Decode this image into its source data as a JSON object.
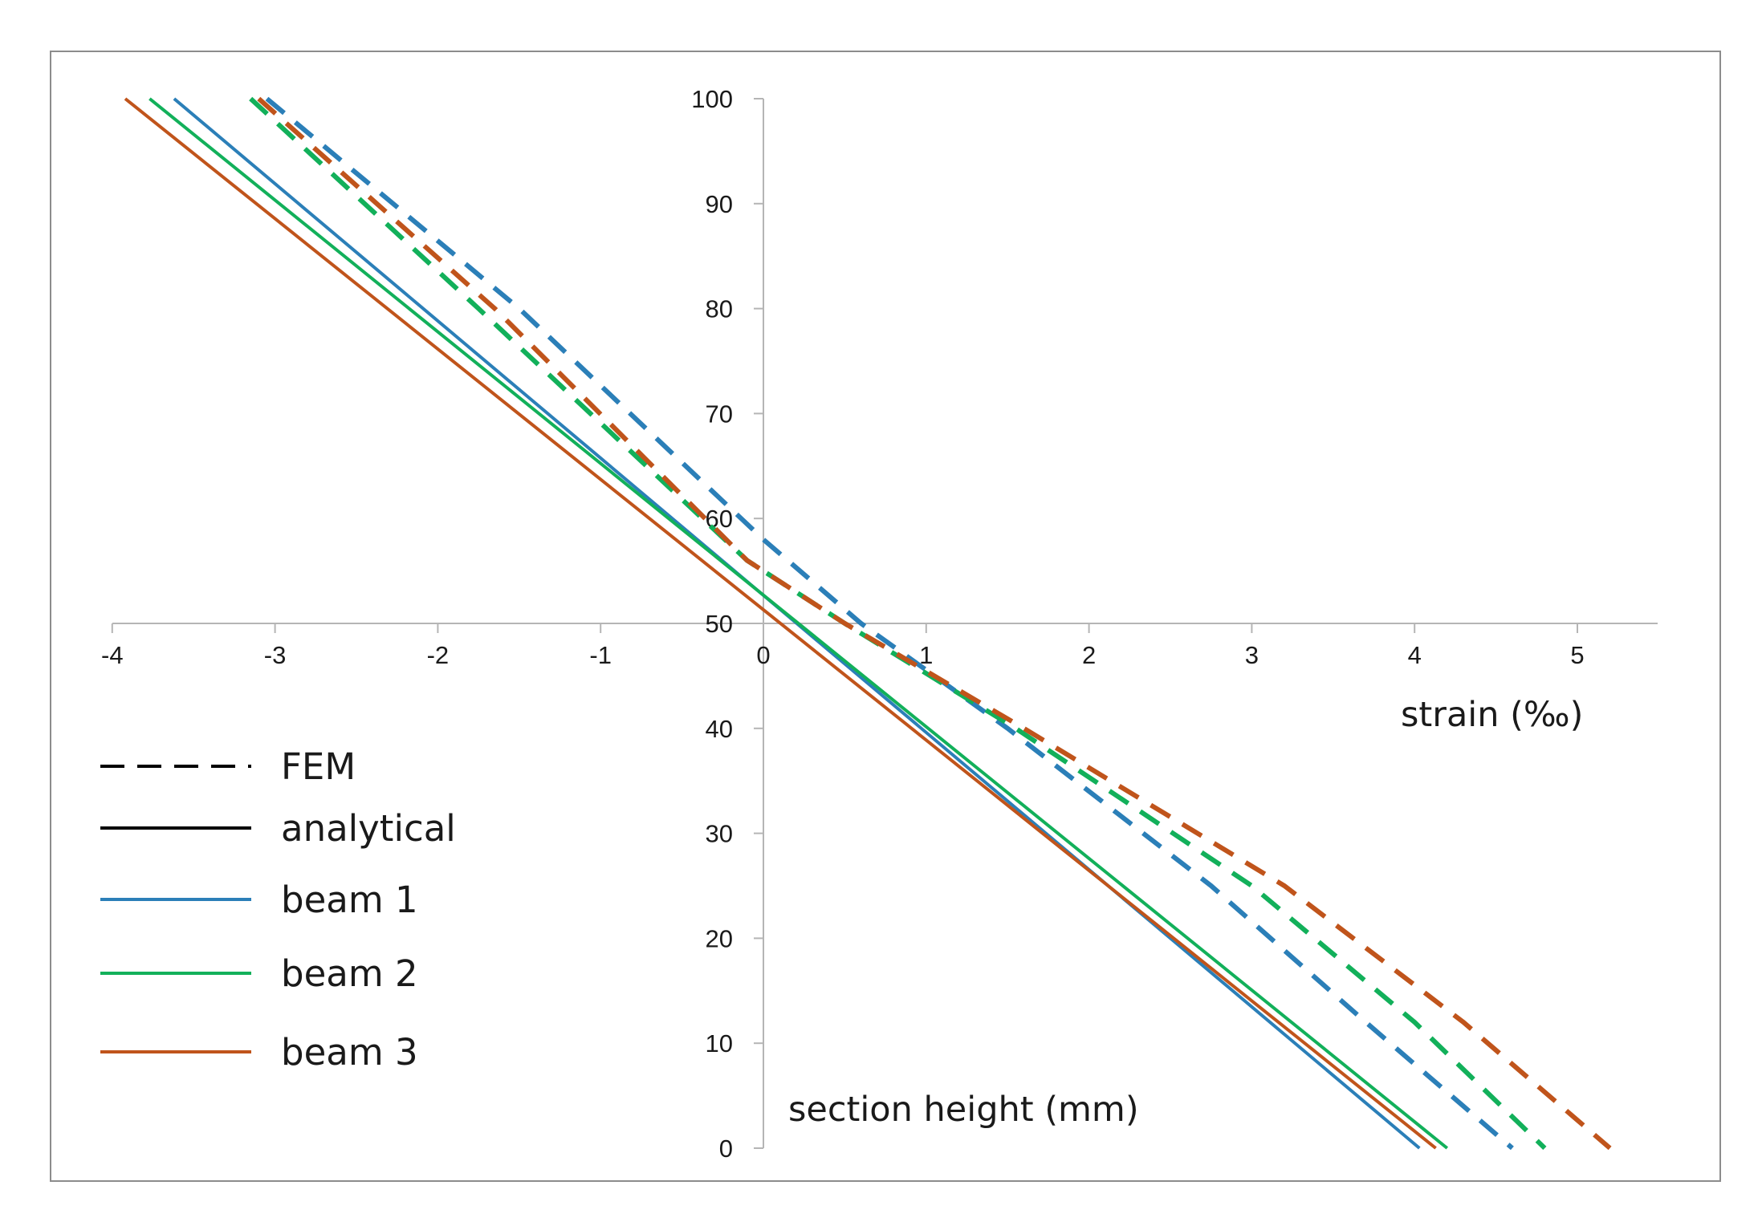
{
  "chart_data": {
    "type": "line",
    "title": "",
    "xlabel": "strain (‰)",
    "ylabel": "section height (mm)",
    "xlim": [
      -4,
      5.5
    ],
    "ylim": [
      0,
      100
    ],
    "x_ticks": [
      "-4",
      "-3",
      "-2",
      "-1",
      "0",
      "1",
      "2",
      "3",
      "4",
      "5"
    ],
    "y_ticks": [
      "0",
      "10",
      "20",
      "30",
      "40",
      "50",
      "60",
      "70",
      "80",
      "90",
      "100"
    ],
    "grid": false,
    "legend_position": "bottom-left",
    "legend": [
      {
        "label": "FEM",
        "color": "#000000",
        "style": "dashed"
      },
      {
        "label": "analytical",
        "color": "#000000",
        "style": "solid"
      },
      {
        "label": "beam 1",
        "color": "#2b7fb8",
        "style": "solid"
      },
      {
        "label": "beam 2",
        "color": "#12b05a",
        "style": "solid"
      },
      {
        "label": "beam 3",
        "color": "#c0541b",
        "style": "solid"
      }
    ],
    "series": [
      {
        "group": "beam 1",
        "method": "analytical",
        "color": "#2b7fb8",
        "style": "solid",
        "points": [
          [
            -3.62,
            100
          ],
          [
            4.03,
            0
          ]
        ]
      },
      {
        "group": "beam 2",
        "method": "analytical",
        "color": "#12b05a",
        "style": "solid",
        "points": [
          [
            -3.77,
            100
          ],
          [
            4.2,
            0
          ]
        ]
      },
      {
        "group": "beam 3",
        "method": "analytical",
        "color": "#c0541b",
        "style": "solid",
        "points": [
          [
            -3.92,
            100
          ],
          [
            4.13,
            0
          ]
        ]
      },
      {
        "group": "beam 1",
        "method": "FEM",
        "color": "#2b7fb8",
        "style": "dashed",
        "points": [
          [
            -3.05,
            100
          ],
          [
            -1.5,
            80
          ],
          [
            0.0,
            58
          ],
          [
            0.6,
            50
          ],
          [
            1.5,
            40
          ],
          [
            2.75,
            25
          ],
          [
            3.7,
            12
          ],
          [
            4.6,
            0
          ]
        ]
      },
      {
        "group": "beam 2",
        "method": "FEM",
        "color": "#12b05a",
        "style": "dashed",
        "points": [
          [
            -3.15,
            100
          ],
          [
            -1.75,
            80
          ],
          [
            -0.1,
            56
          ],
          [
            0.5,
            50
          ],
          [
            1.55,
            40
          ],
          [
            3.0,
            25
          ],
          [
            4.0,
            12
          ],
          [
            4.8,
            0
          ]
        ]
      },
      {
        "group": "beam 3",
        "method": "FEM",
        "color": "#c0541b",
        "style": "dashed",
        "points": [
          [
            -3.1,
            100
          ],
          [
            -1.65,
            80
          ],
          [
            -0.1,
            56
          ],
          [
            0.5,
            50
          ],
          [
            1.6,
            40
          ],
          [
            3.2,
            25
          ],
          [
            4.3,
            12
          ],
          [
            5.2,
            0
          ]
        ]
      }
    ]
  }
}
